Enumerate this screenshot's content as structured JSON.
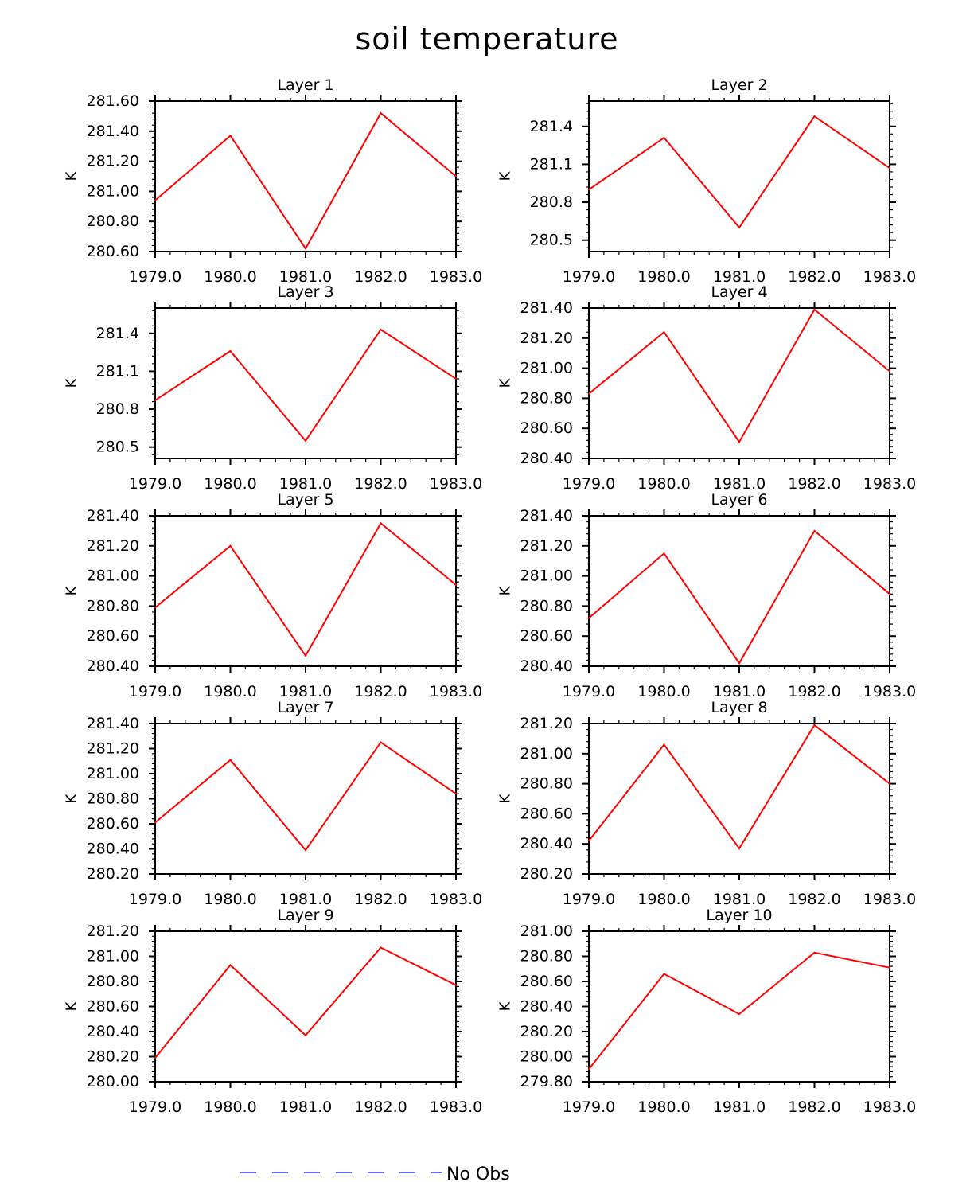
{
  "figure": {
    "title": "soil temperature",
    "legend": {
      "label": "No Obs",
      "color": "#3333ff",
      "style": "dashed"
    }
  },
  "colors": {
    "series": "#ff0000",
    "axes": "#000000"
  },
  "chart_data": [
    {
      "type": "line",
      "title": "Layer 1",
      "xlabel": "",
      "ylabel": "K",
      "x": [
        1979,
        1980,
        1981,
        1982,
        1983
      ],
      "x_tick_labels": [
        "1979.0",
        "1980.0",
        "1981.0",
        "1982.0",
        "1983.0"
      ],
      "y_ticks": [
        280.6,
        280.8,
        281.0,
        281.2,
        281.4,
        281.6
      ],
      "y_tick_labels": [
        "280.60",
        "280.80",
        "281.00",
        "281.20",
        "281.40",
        "281.60"
      ],
      "ylim": [
        280.6,
        281.6
      ],
      "series": [
        {
          "values": [
            280.94,
            281.37,
            280.62,
            281.52,
            281.1
          ]
        }
      ]
    },
    {
      "type": "line",
      "title": "Layer 2",
      "xlabel": "",
      "ylabel": "K",
      "x": [
        1979,
        1980,
        1981,
        1982,
        1983
      ],
      "x_tick_labels": [
        "1979.0",
        "1980.0",
        "1981.0",
        "1982.0",
        "1983.0"
      ],
      "y_ticks": [
        280.5,
        280.8,
        281.1,
        281.4
      ],
      "y_tick_labels": [
        "280.5",
        "280.8",
        "281.1",
        "281.4"
      ],
      "ylim": [
        280.41,
        281.6
      ],
      "series": [
        {
          "values": [
            280.9,
            281.31,
            280.6,
            281.48,
            281.07
          ]
        }
      ]
    },
    {
      "type": "line",
      "title": "Layer 3",
      "xlabel": "",
      "ylabel": "K",
      "x": [
        1979,
        1980,
        1981,
        1982,
        1983
      ],
      "x_tick_labels": [
        "1979.0",
        "1980.0",
        "1981.0",
        "1982.0",
        "1983.0"
      ],
      "y_ticks": [
        280.5,
        280.8,
        281.1,
        281.4
      ],
      "y_tick_labels": [
        "280.5",
        "280.8",
        "281.1",
        "281.4"
      ],
      "ylim": [
        280.41,
        281.6
      ],
      "series": [
        {
          "values": [
            280.87,
            281.26,
            280.55,
            281.43,
            281.04
          ]
        }
      ]
    },
    {
      "type": "line",
      "title": "Layer 4",
      "xlabel": "",
      "ylabel": "K",
      "x": [
        1979,
        1980,
        1981,
        1982,
        1983
      ],
      "x_tick_labels": [
        "1979.0",
        "1980.0",
        "1981.0",
        "1982.0",
        "1983.0"
      ],
      "y_ticks": [
        280.4,
        280.6,
        280.8,
        281.0,
        281.2,
        281.4
      ],
      "y_tick_labels": [
        "280.40",
        "280.60",
        "280.80",
        "281.00",
        "281.20",
        "281.40"
      ],
      "ylim": [
        280.4,
        281.4
      ],
      "series": [
        {
          "values": [
            280.83,
            281.24,
            280.51,
            281.39,
            280.98
          ]
        }
      ]
    },
    {
      "type": "line",
      "title": "Layer 5",
      "xlabel": "",
      "ylabel": "K",
      "x": [
        1979,
        1980,
        1981,
        1982,
        1983
      ],
      "x_tick_labels": [
        "1979.0",
        "1980.0",
        "1981.0",
        "1982.0",
        "1983.0"
      ],
      "y_ticks": [
        280.4,
        280.6,
        280.8,
        281.0,
        281.2,
        281.4
      ],
      "y_tick_labels": [
        "280.40",
        "280.60",
        "280.80",
        "281.00",
        "281.20",
        "281.40"
      ],
      "ylim": [
        280.4,
        281.4
      ],
      "series": [
        {
          "values": [
            280.79,
            281.2,
            280.47,
            281.35,
            280.94
          ]
        }
      ]
    },
    {
      "type": "line",
      "title": "Layer 6",
      "xlabel": "",
      "ylabel": "K",
      "x": [
        1979,
        1980,
        1981,
        1982,
        1983
      ],
      "x_tick_labels": [
        "1979.0",
        "1980.0",
        "1981.0",
        "1982.0",
        "1983.0"
      ],
      "y_ticks": [
        280.4,
        280.6,
        280.8,
        281.0,
        281.2,
        281.4
      ],
      "y_tick_labels": [
        "280.40",
        "280.60",
        "280.80",
        "281.00",
        "281.20",
        "281.40"
      ],
      "ylim": [
        280.4,
        281.4
      ],
      "series": [
        {
          "values": [
            280.72,
            281.15,
            280.42,
            281.3,
            280.88
          ]
        }
      ]
    },
    {
      "type": "line",
      "title": "Layer 7",
      "xlabel": "",
      "ylabel": "K",
      "x": [
        1979,
        1980,
        1981,
        1982,
        1983
      ],
      "x_tick_labels": [
        "1979.0",
        "1980.0",
        "1981.0",
        "1982.0",
        "1983.0"
      ],
      "y_ticks": [
        280.2,
        280.4,
        280.6,
        280.8,
        281.0,
        281.2,
        281.4
      ],
      "y_tick_labels": [
        "280.20",
        "280.40",
        "280.60",
        "280.80",
        "281.00",
        "281.20",
        "281.40"
      ],
      "ylim": [
        280.2,
        281.4
      ],
      "series": [
        {
          "values": [
            280.61,
            281.11,
            280.39,
            281.25,
            280.84
          ]
        }
      ]
    },
    {
      "type": "line",
      "title": "Layer 8",
      "xlabel": "",
      "ylabel": "K",
      "x": [
        1979,
        1980,
        1981,
        1982,
        1983
      ],
      "x_tick_labels": [
        "1979.0",
        "1980.0",
        "1981.0",
        "1982.0",
        "1983.0"
      ],
      "y_ticks": [
        280.2,
        280.4,
        280.6,
        280.8,
        281.0,
        281.2
      ],
      "y_tick_labels": [
        "280.20",
        "280.40",
        "280.60",
        "280.80",
        "281.00",
        "281.20"
      ],
      "ylim": [
        280.2,
        281.2
      ],
      "series": [
        {
          "values": [
            280.42,
            281.06,
            280.37,
            281.19,
            280.8
          ]
        }
      ]
    },
    {
      "type": "line",
      "title": "Layer 9",
      "xlabel": "",
      "ylabel": "K",
      "x": [
        1979,
        1980,
        1981,
        1982,
        1983
      ],
      "x_tick_labels": [
        "1979.0",
        "1980.0",
        "1981.0",
        "1982.0",
        "1983.0"
      ],
      "y_ticks": [
        280.0,
        280.2,
        280.4,
        280.6,
        280.8,
        281.0,
        281.2
      ],
      "y_tick_labels": [
        "280.00",
        "280.20",
        "280.40",
        "280.60",
        "280.80",
        "281.00",
        "281.20"
      ],
      "ylim": [
        280.0,
        281.2
      ],
      "series": [
        {
          "values": [
            280.19,
            280.93,
            280.37,
            281.07,
            280.77
          ]
        }
      ]
    },
    {
      "type": "line",
      "title": "Layer 10",
      "xlabel": "",
      "ylabel": "K",
      "x": [
        1979,
        1980,
        1981,
        1982,
        1983
      ],
      "x_tick_labels": [
        "1979.0",
        "1980.0",
        "1981.0",
        "1982.0",
        "1983.0"
      ],
      "y_ticks": [
        279.8,
        280.0,
        280.2,
        280.4,
        280.6,
        280.8,
        281.0
      ],
      "y_tick_labels": [
        "279.80",
        "280.00",
        "280.20",
        "280.40",
        "280.60",
        "280.80",
        "281.00"
      ],
      "ylim": [
        279.8,
        281.0
      ],
      "series": [
        {
          "values": [
            279.9,
            280.66,
            280.34,
            280.83,
            280.71
          ]
        }
      ]
    }
  ]
}
